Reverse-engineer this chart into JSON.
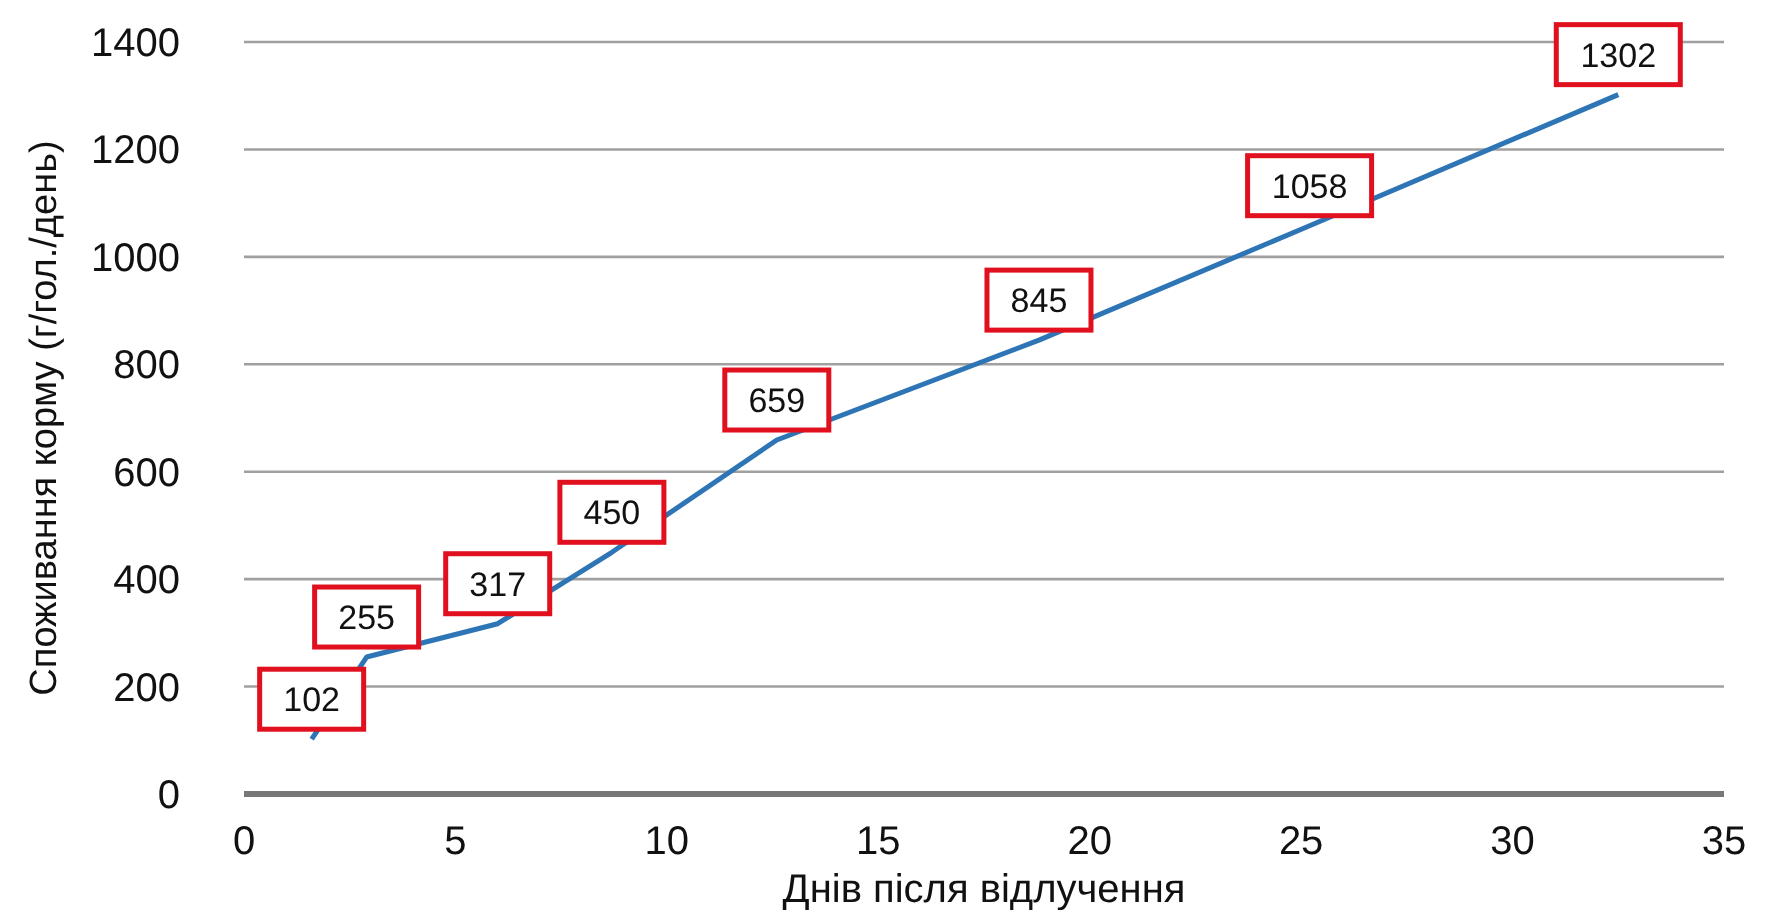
{
  "chart_data": {
    "type": "line",
    "xlabel": "Днів після відлучення",
    "ylabel": "Споживання корму  (г/гол./день)",
    "x": [
      1.6,
      2.9,
      6,
      8.7,
      12.6,
      18.8,
      25.2,
      32.5
    ],
    "series": [
      {
        "color": "#2e75b6",
        "values": [
          102,
          255,
          317,
          450,
          659,
          845,
          1058,
          1302
        ]
      }
    ],
    "xlim": [
      0,
      35
    ],
    "xticks": [
      0,
      5,
      10,
      15,
      20,
      25,
      30,
      35
    ],
    "ylim": [
      0,
      1400
    ],
    "yticks": [
      0,
      200,
      400,
      600,
      800,
      1000,
      1200,
      1400
    ],
    "grid": "y",
    "data_labels": true,
    "line_style": "solid"
  }
}
